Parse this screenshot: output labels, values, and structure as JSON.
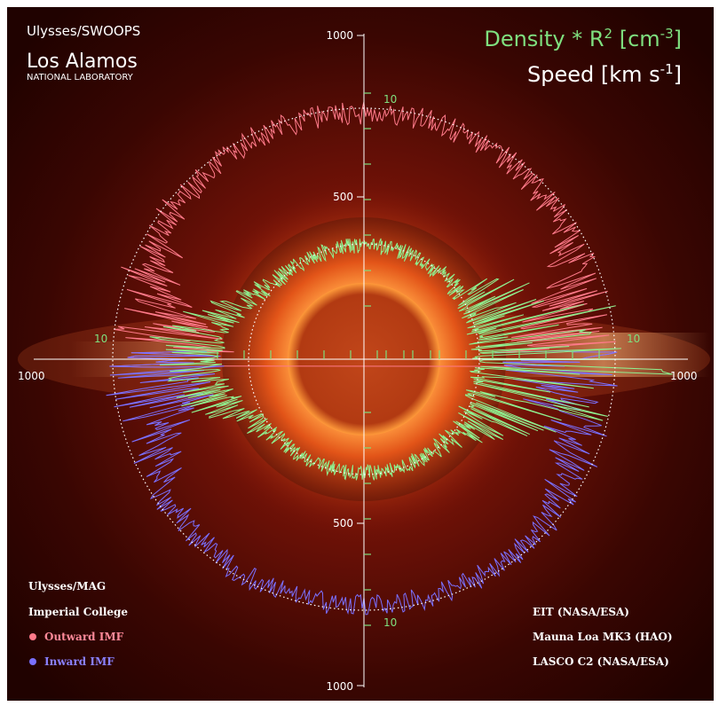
{
  "header": {
    "instrument": "Ulysses/SWOOPS",
    "lab_name": "Los Alamos",
    "lab_sub": "NATIONAL LABORATORY",
    "density_label": {
      "text": "Density * R",
      "sup1": "2",
      "mid": " [cm",
      "sup2": "-3",
      "end": "]"
    },
    "speed_label": {
      "text": "Speed [km s",
      "sup": "-1",
      "end": "]"
    }
  },
  "axes": {
    "top": "1000",
    "top_mid": "500",
    "left": "1000",
    "right": "1000",
    "bottom_mid": "500",
    "bottom": "1000",
    "density_top": "10",
    "density_left": "10",
    "density_right": "10",
    "density_bottom": "10"
  },
  "legend": {
    "title": "Ulysses/MAG",
    "subtitle": "Imperial College",
    "outward": "Outward IMF",
    "inward": "Inward  IMF"
  },
  "credits": [
    "EIT (NASA/ESA)",
    "Mauna Loa MK3 (HAO)",
    "LASCO C2 (NASA/ESA)"
  ]
}
